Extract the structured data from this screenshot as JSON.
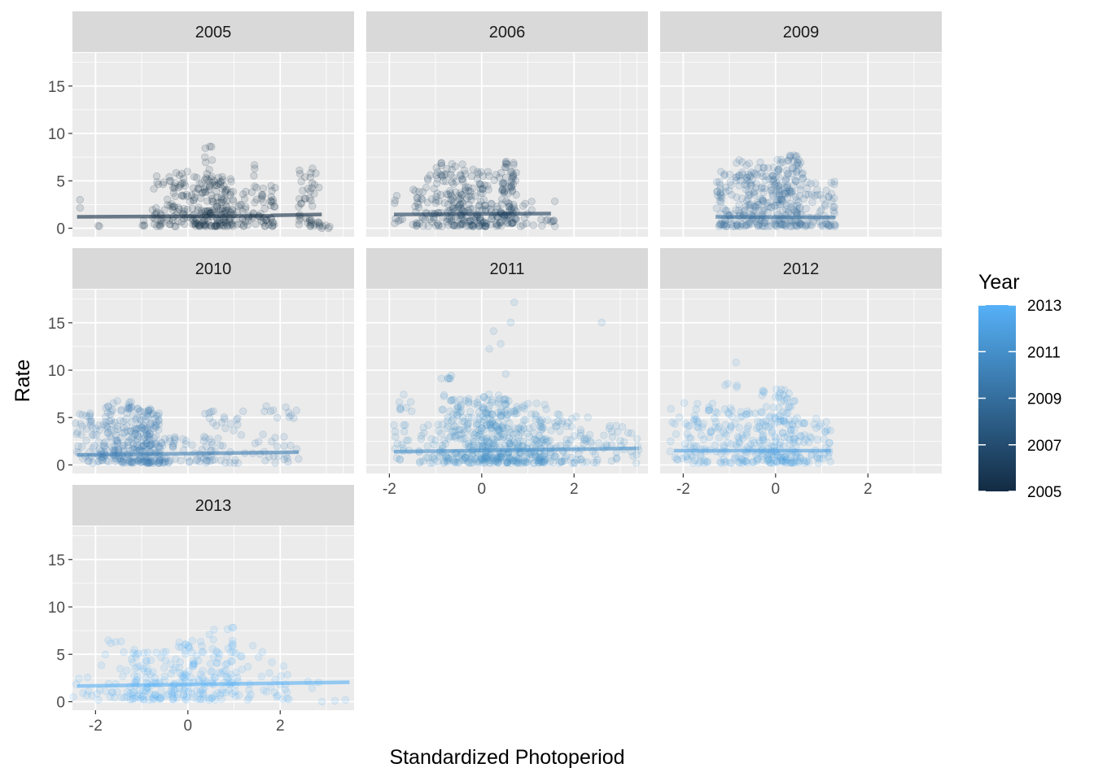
{
  "chart_data": {
    "type": "scatter",
    "layout": "facet_wrap",
    "facet_columns": 3,
    "xlabel": "Standardized Photoperiod",
    "ylabel": "Rate",
    "xlim": [
      -2.5,
      3.6
    ],
    "ylim": [
      -0.9,
      18.5
    ],
    "x_ticks": [
      -2,
      0,
      2
    ],
    "x_tick_labels": [
      "-2",
      "0",
      "2"
    ],
    "y_ticks": [
      0,
      5,
      10,
      15
    ],
    "y_tick_labels": [
      "0",
      "5",
      "10",
      "15"
    ],
    "grid": true,
    "legend": {
      "title": "Year",
      "position": "right",
      "type": "colorbar",
      "range": [
        2005,
        2013
      ],
      "ticks": [
        2013,
        2011,
        2009,
        2007,
        2005
      ],
      "tick_labels": [
        "2013",
        "2011",
        "2009",
        "2007",
        "2005"
      ],
      "low_color": "#132B43",
      "high_color": "#56B1F7"
    },
    "facets": [
      {
        "label": "2005",
        "year": 2005,
        "fit_segments": [
          [
            -2.4,
            1.2,
            1.8,
            1.3
          ],
          [
            1.8,
            1.35,
            2.9,
            1.45
          ]
        ],
        "clusters": [
          {
            "xmin": -2.4,
            "xmax": -2.3,
            "ymin": 2.0,
            "ymax": 3.0,
            "n": 2
          },
          {
            "xmin": -1.95,
            "xmax": -1.9,
            "ymin": 0.1,
            "ymax": 0.3,
            "n": 2
          },
          {
            "xmin": -1.1,
            "xmax": -0.9,
            "ymin": 0.2,
            "ymax": 1.0,
            "n": 4
          },
          {
            "xmin": -0.8,
            "xmax": -0.5,
            "ymin": 0.2,
            "ymax": 6.0,
            "n": 25
          },
          {
            "xmin": -0.45,
            "xmax": 0.1,
            "ymin": 0.2,
            "ymax": 6.0,
            "n": 60
          },
          {
            "xmin": 0.1,
            "xmax": 1.0,
            "ymin": 0.2,
            "ymax": 5.5,
            "n": 170
          },
          {
            "xmin": 0.35,
            "xmax": 0.55,
            "ymin": 5.0,
            "ymax": 9.8,
            "n": 10
          },
          {
            "xmin": 1.0,
            "xmax": 1.9,
            "ymin": 0.2,
            "ymax": 4.5,
            "n": 70
          },
          {
            "xmin": 1.35,
            "xmax": 1.45,
            "ymin": 5.0,
            "ymax": 7.2,
            "n": 3
          },
          {
            "xmin": 2.4,
            "xmax": 2.9,
            "ymin": 0.2,
            "ymax": 7.0,
            "n": 45
          },
          {
            "xmin": 2.9,
            "xmax": 3.1,
            "ymin": 0.0,
            "ymax": 0.5,
            "n": 5
          }
        ]
      },
      {
        "label": "2006",
        "year": 2006,
        "fit_segments": [
          [
            -1.9,
            1.45,
            1.5,
            1.55
          ]
        ],
        "clusters": [
          {
            "xmin": -1.9,
            "xmax": -1.7,
            "ymin": 0.5,
            "ymax": 4.0,
            "n": 8
          },
          {
            "xmin": -1.5,
            "xmax": -1.0,
            "ymin": 0.2,
            "ymax": 6.0,
            "n": 40
          },
          {
            "xmin": -1.0,
            "xmax": -0.4,
            "ymin": 0.2,
            "ymax": 7.2,
            "n": 90
          },
          {
            "xmin": -0.5,
            "xmax": 0.0,
            "ymin": 0.2,
            "ymax": 6.5,
            "n": 80
          },
          {
            "xmin": 0.0,
            "xmax": 0.5,
            "ymin": 0.2,
            "ymax": 6.0,
            "n": 60
          },
          {
            "xmin": 0.4,
            "xmax": 0.75,
            "ymin": 0.5,
            "ymax": 8.0,
            "n": 70
          },
          {
            "xmin": 0.75,
            "xmax": 1.6,
            "ymin": 0.2,
            "ymax": 3.5,
            "n": 20
          }
        ]
      },
      {
        "label": "2009",
        "year": 2009,
        "fit_segments": [
          [
            -1.3,
            1.2,
            1.3,
            1.15
          ]
        ],
        "clusters": [
          {
            "xmin": -1.3,
            "xmax": -0.6,
            "ymin": 0.2,
            "ymax": 6.0,
            "n": 90
          },
          {
            "xmin": -0.9,
            "xmax": -0.5,
            "ymin": 5.0,
            "ymax": 7.4,
            "n": 10
          },
          {
            "xmin": -0.6,
            "xmax": 0.0,
            "ymin": 0.2,
            "ymax": 7.0,
            "n": 110
          },
          {
            "xmin": 0.0,
            "xmax": 0.6,
            "ymin": 0.2,
            "ymax": 7.7,
            "n": 150
          },
          {
            "xmin": 0.6,
            "xmax": 1.3,
            "ymin": 0.2,
            "ymax": 5.0,
            "n": 60
          }
        ]
      },
      {
        "label": "2010",
        "year": 2010,
        "fit_segments": [
          [
            -2.4,
            1.05,
            2.4,
            1.35
          ]
        ],
        "clusters": [
          {
            "xmin": -2.45,
            "xmax": -1.8,
            "ymin": 0.2,
            "ymax": 5.5,
            "n": 60
          },
          {
            "xmin": -1.8,
            "xmax": -1.2,
            "ymin": 0.2,
            "ymax": 7.0,
            "n": 110
          },
          {
            "xmin": -1.2,
            "xmax": -0.6,
            "ymin": 0.2,
            "ymax": 6.0,
            "n": 160
          },
          {
            "xmin": -0.6,
            "xmax": 0.5,
            "ymin": 0.2,
            "ymax": 3.0,
            "n": 50
          },
          {
            "xmin": 0.3,
            "xmax": 1.6,
            "ymin": 0.2,
            "ymax": 6.0,
            "n": 45
          },
          {
            "xmin": 1.6,
            "xmax": 2.4,
            "ymin": 0.2,
            "ymax": 6.8,
            "n": 30
          }
        ]
      },
      {
        "label": "2011",
        "year": 2011,
        "fit_segments": [
          [
            -1.9,
            1.4,
            3.4,
            1.75
          ]
        ],
        "clusters": [
          {
            "xmin": -1.9,
            "xmax": -1.5,
            "ymin": 0.5,
            "ymax": 7.5,
            "n": 25
          },
          {
            "xmin": -1.4,
            "xmax": -0.9,
            "ymin": 0.2,
            "ymax": 4.5,
            "n": 25
          },
          {
            "xmin": -0.9,
            "xmax": -0.6,
            "ymin": 0.2,
            "ymax": 9.5,
            "n": 50
          },
          {
            "xmin": -0.6,
            "xmax": 0.0,
            "ymin": 0.2,
            "ymax": 7.0,
            "n": 110
          },
          {
            "xmin": 0.0,
            "xmax": 0.6,
            "ymin": 0.2,
            "ymax": 7.5,
            "n": 180
          },
          {
            "xmin": 0.6,
            "xmax": 1.4,
            "ymin": 0.2,
            "ymax": 6.5,
            "n": 150
          },
          {
            "xmin": 1.4,
            "xmax": 2.4,
            "ymin": 0.2,
            "ymax": 5.5,
            "n": 70
          },
          {
            "xmin": 2.4,
            "xmax": 3.4,
            "ymin": 0.2,
            "ymax": 4.5,
            "n": 35
          },
          {
            "xmin": 0.1,
            "xmax": 0.8,
            "ymin": 9.5,
            "ymax": 17.3,
            "n": 6
          },
          {
            "xmin": 2.55,
            "xmax": 2.65,
            "ymin": 15.0,
            "ymax": 15.4,
            "n": 1
          }
        ]
      },
      {
        "label": "2012",
        "year": 2012,
        "fit_segments": [
          [
            -2.2,
            1.5,
            1.2,
            1.5
          ]
        ],
        "clusters": [
          {
            "xmin": -2.3,
            "xmax": -1.8,
            "ymin": 0.5,
            "ymax": 7.3,
            "n": 25
          },
          {
            "xmin": -1.8,
            "xmax": -1.0,
            "ymin": 0.2,
            "ymax": 6.5,
            "n": 70
          },
          {
            "xmin": -1.1,
            "xmax": -0.8,
            "ymin": 8.0,
            "ymax": 11.0,
            "n": 5
          },
          {
            "xmin": -1.0,
            "xmax": -0.3,
            "ymin": 0.2,
            "ymax": 6.0,
            "n": 70
          },
          {
            "xmin": -0.3,
            "xmax": 0.5,
            "ymin": 0.2,
            "ymax": 8.0,
            "n": 150
          },
          {
            "xmin": 0.5,
            "xmax": 1.2,
            "ymin": 0.2,
            "ymax": 5.0,
            "n": 50
          }
        ]
      },
      {
        "label": "2013",
        "year": 2013,
        "fit_segments": [
          [
            -2.4,
            1.65,
            3.5,
            2.05
          ]
        ],
        "clusters": [
          {
            "xmin": -2.5,
            "xmax": -2.0,
            "ymin": 0.5,
            "ymax": 3.0,
            "n": 8
          },
          {
            "xmin": -2.0,
            "xmax": -1.2,
            "ymin": 0.2,
            "ymax": 6.5,
            "n": 30
          },
          {
            "xmin": -1.2,
            "xmax": -0.3,
            "ymin": 0.2,
            "ymax": 5.5,
            "n": 90
          },
          {
            "xmin": -0.3,
            "xmax": 0.4,
            "ymin": 0.2,
            "ymax": 6.5,
            "n": 80
          },
          {
            "xmin": 0.4,
            "xmax": 1.0,
            "ymin": 0.2,
            "ymax": 8.0,
            "n": 60
          },
          {
            "xmin": 1.0,
            "xmax": 2.2,
            "ymin": 0.2,
            "ymax": 6.0,
            "n": 40
          },
          {
            "xmin": 2.2,
            "xmax": 3.5,
            "ymin": 0.0,
            "ymax": 2.5,
            "n": 6
          }
        ]
      }
    ]
  }
}
